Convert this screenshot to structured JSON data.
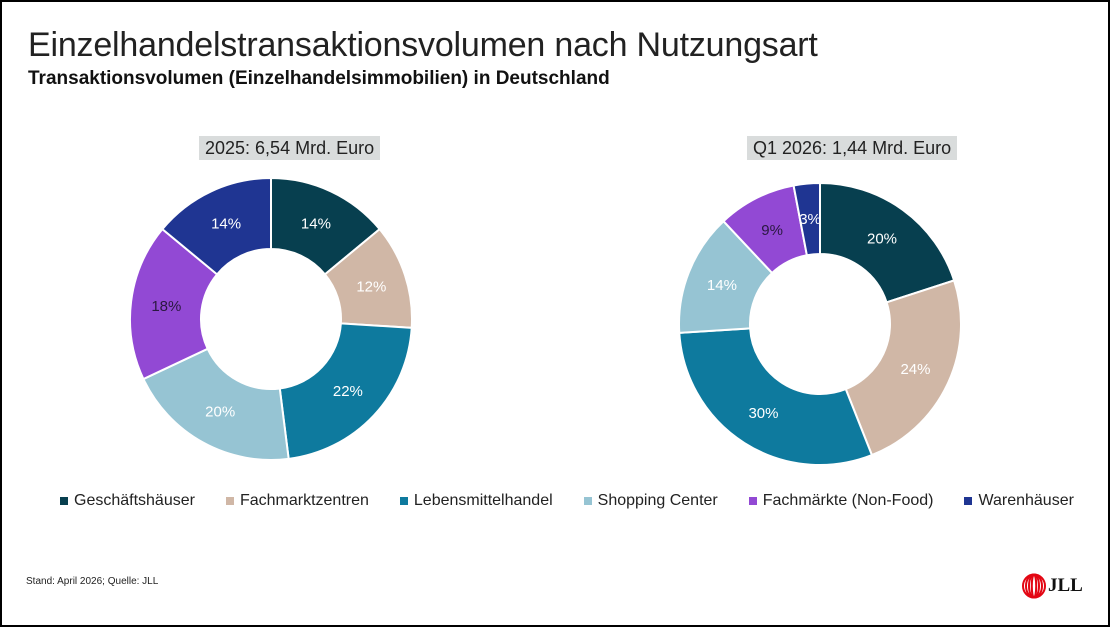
{
  "header": {
    "title": "Einzelhandelstransaktionsvolumen nach Nutzungsart",
    "subtitle": "Transaktionsvolumen (Einzelhandelsimmobilien) in Deutschland"
  },
  "chart_data": [
    {
      "type": "pie",
      "variant": "donut",
      "title": "2025: 6,54 Mrd. Euro",
      "unit": "%",
      "categories": [
        "Geschäftshäuser",
        "Fachmarktzentren",
        "Lebensmittelhandel",
        "Shopping Center",
        "Fachmärkte (Non-Food)",
        "Warenhäuser"
      ],
      "values": [
        14,
        12,
        22,
        20,
        18,
        14
      ],
      "labels": [
        "14%",
        "12%",
        "22%",
        "20%",
        "18%",
        "14%"
      ]
    },
    {
      "type": "pie",
      "variant": "donut",
      "title": "Q1 2026: 1,44 Mrd. Euro",
      "unit": "%",
      "categories": [
        "Geschäftshäuser",
        "Fachmarktzentren",
        "Lebensmittelhandel",
        "Shopping Center",
        "Fachmärkte (Non-Food)",
        "Warenhäuser"
      ],
      "values": [
        20,
        24,
        30,
        14,
        9,
        3
      ],
      "labels": [
        "20%",
        "24%",
        "30%",
        "14%",
        "9%",
        "3%"
      ]
    }
  ],
  "series_colors": {
    "Geschäftshäuser": "#073f4f",
    "Fachmarktzentren": "#d0b7a6",
    "Lebensmittelhandel": "#0e7a9e",
    "Shopping Center": "#96c4d3",
    "Fachmärkte (Non-Food)": "#9249d4",
    "Warenhäuser": "#1f3592"
  },
  "label_colors": {
    "Geschäftshäuser": "#ffffff",
    "Fachmarktzentren": "#ffffff",
    "Lebensmittelhandel": "#ffffff",
    "Shopping Center": "#ffffff",
    "Fachmärkte (Non-Food)": "#2a1840",
    "Warenhäuser": "#ffffff"
  },
  "legend": [
    {
      "label": "Geschäftshäuser"
    },
    {
      "label": "Fachmarktzentren"
    },
    {
      "label": "Lebensmittelhandel"
    },
    {
      "label": "Shopping Center"
    },
    {
      "label": "Fachmärkte (Non-Food)"
    },
    {
      "label": "Warenhäuser"
    }
  ],
  "footer": {
    "note": "Stand: April 2026; Quelle: JLL",
    "logo_text": "JLL",
    "logo_color": "#e30613"
  }
}
